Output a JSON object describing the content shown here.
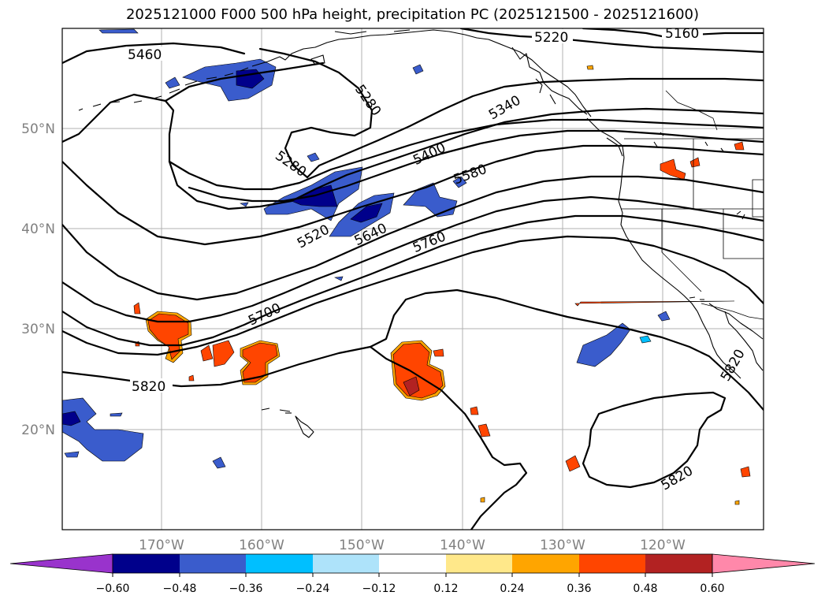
{
  "title": "2025121000 F000 500 hPa height, precipitation PC (2025121500 - 2025121600)",
  "map": {
    "lat_labels": [
      "50°N",
      "40°N",
      "30°N",
      "20°N"
    ],
    "lon_labels": [
      "170°W",
      "160°W",
      "150°W",
      "140°W",
      "130°W",
      "120°W"
    ],
    "contour_labels": [
      "5160",
      "5220",
      "5460",
      "5280",
      "5340",
      "5280",
      "5400",
      "5580",
      "5520",
      "5640",
      "5760",
      "5700",
      "5820",
      "5820",
      "5820"
    ],
    "contour_line_color": "#000000",
    "coastline_color": "#000000",
    "gridline_color": "#b0b0b0"
  },
  "colorbar": {
    "ticks": [
      "−0.60",
      "−0.48",
      "−0.36",
      "−0.24",
      "−0.12",
      "0.12",
      "0.24",
      "0.36",
      "0.48",
      "0.60"
    ],
    "colors": [
      "#9933cc",
      "#00008b",
      "#3a5ccc",
      "#00bfff",
      "#aee3fa",
      "#ffffff",
      "#ffe88a",
      "#ffa500",
      "#ff4500",
      "#b22222",
      "#ff88aa"
    ]
  }
}
